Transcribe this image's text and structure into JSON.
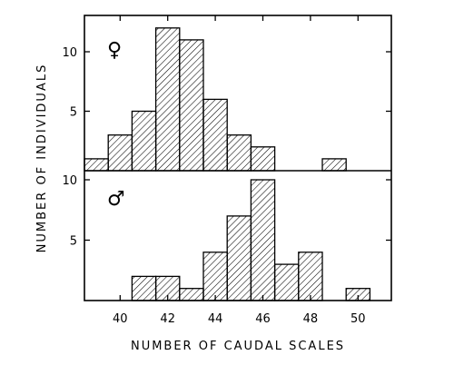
{
  "chart_data": [
    {
      "type": "bar",
      "panel": "female",
      "symbol": "♀",
      "x": [
        39,
        40,
        41,
        42,
        43,
        44,
        45,
        46,
        47,
        48,
        49,
        50
      ],
      "values": [
        1,
        3,
        5,
        12,
        11,
        6,
        3,
        2,
        0,
        0,
        1,
        0
      ],
      "yticks": [
        5,
        10
      ],
      "ylim": [
        0,
        13
      ]
    },
    {
      "type": "bar",
      "panel": "male",
      "symbol": "♂",
      "x": [
        39,
        40,
        41,
        42,
        43,
        44,
        45,
        46,
        47,
        48,
        49,
        50
      ],
      "values": [
        0,
        0,
        2,
        2,
        1,
        4,
        7,
        10,
        3,
        4,
        0,
        1
      ],
      "yticks": [
        5,
        10
      ],
      "ylim": [
        0,
        11
      ]
    }
  ],
  "xaxis": {
    "label": "NUMBER OF CAUDAL SCALES",
    "ticks": [
      "40",
      "42",
      "44",
      "46",
      "48",
      "50"
    ]
  },
  "yaxis": {
    "label": "NUMBER OF INDIVIDUALS"
  }
}
